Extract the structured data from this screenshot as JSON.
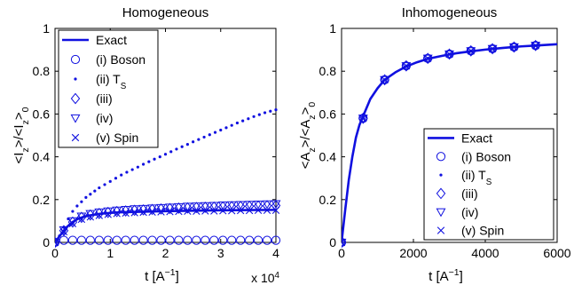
{
  "chart_data": [
    {
      "type": "line",
      "title": "Homogeneous",
      "xlabel": "t [A",
      "xlabel_sup": "−1",
      "xlabel_end": "]",
      "ylabel": "<I",
      "ylabel_sub1": "z",
      "ylabel_mid": ">/<I",
      "ylabel_sub2": "z",
      "ylabel_end": ">",
      "ylabel_sub3": "0",
      "x_multiplier_label": "x 10",
      "x_multiplier_exp": "4",
      "xlim": [
        0,
        40000
      ],
      "ylim": [
        0,
        1
      ],
      "x_ticks": [
        0,
        10000,
        20000,
        30000,
        40000
      ],
      "x_tick_labels": [
        "0",
        "1",
        "2",
        "3",
        "4"
      ],
      "y_ticks": [
        0,
        0.2,
        0.4,
        0.6,
        0.8,
        1
      ],
      "y_tick_labels": [
        "0",
        "0.2",
        "0.4",
        "0.6",
        "0.8",
        "1"
      ],
      "color": "#1010e0",
      "legend_position": "top-left",
      "series": [
        {
          "name": "Exact",
          "marker": "line",
          "x": [
            0,
            1000,
            2000,
            3000,
            4000,
            5000,
            6000,
            8000,
            10000,
            12000,
            15000,
            20000,
            25000,
            30000,
            35000,
            40000
          ],
          "y": [
            0,
            0.035,
            0.068,
            0.092,
            0.108,
            0.118,
            0.125,
            0.133,
            0.138,
            0.141,
            0.143,
            0.146,
            0.148,
            0.15,
            0.151,
            0.152
          ]
        },
        {
          "name": "(i) Boson",
          "marker": "circle",
          "x": [
            0,
            1600,
            3200,
            4800,
            6400,
            8000,
            9600,
            11200,
            12800,
            14400,
            16000,
            17600,
            19200,
            20800,
            22400,
            24000,
            25600,
            27200,
            28800,
            30400,
            32000,
            33600,
            35200,
            36800,
            38400,
            40000
          ],
          "y": [
            0,
            0.01,
            0.01,
            0.01,
            0.01,
            0.01,
            0.01,
            0.01,
            0.01,
            0.01,
            0.01,
            0.01,
            0.01,
            0.01,
            0.01,
            0.01,
            0.01,
            0.01,
            0.01,
            0.01,
            0.01,
            0.01,
            0.01,
            0.01,
            0.01,
            0.01
          ]
        },
        {
          "name": "(ii) T",
          "name_sub": "S",
          "marker": "dot",
          "x": [
            0,
            800,
            1600,
            2400,
            3200,
            4000,
            4800,
            5600,
            6400,
            7200,
            8000,
            9000,
            10000,
            11000,
            12000,
            13000,
            14000,
            15000,
            16000,
            17000,
            18000,
            19000,
            20000,
            21000,
            22000,
            23000,
            24000,
            25000,
            26000,
            27000,
            28000,
            29000,
            30000,
            31000,
            32000,
            33000,
            34000,
            35000,
            36000,
            37000,
            38000,
            39000,
            40000
          ],
          "y": [
            0,
            0.03,
            0.07,
            0.11,
            0.145,
            0.17,
            0.19,
            0.21,
            0.225,
            0.24,
            0.255,
            0.27,
            0.285,
            0.3,
            0.315,
            0.328,
            0.34,
            0.352,
            0.365,
            0.377,
            0.389,
            0.4,
            0.412,
            0.424,
            0.436,
            0.447,
            0.458,
            0.47,
            0.481,
            0.492,
            0.503,
            0.514,
            0.525,
            0.536,
            0.547,
            0.558,
            0.568,
            0.578,
            0.588,
            0.597,
            0.606,
            0.613,
            0.62
          ]
        },
        {
          "name": "(iii)",
          "marker": "diamond",
          "x": [
            0,
            1600,
            3200,
            4800,
            6400,
            8000,
            9600,
            11200,
            12800,
            14400,
            16000,
            17600,
            19200,
            20800,
            22400,
            24000,
            25600,
            27200,
            28800,
            30400,
            32000,
            33600,
            35200,
            36800,
            38400,
            40000
          ],
          "y": [
            0,
            0.055,
            0.095,
            0.117,
            0.128,
            0.135,
            0.14,
            0.144,
            0.147,
            0.15,
            0.152,
            0.154,
            0.156,
            0.158,
            0.16,
            0.161,
            0.163,
            0.164,
            0.165,
            0.166,
            0.167,
            0.168,
            0.169,
            0.17,
            0.171,
            0.172
          ]
        },
        {
          "name": "(iv)",
          "marker": "triangle-down",
          "x": [
            0,
            1600,
            3200,
            4800,
            6400,
            8000,
            9600,
            11200,
            12800,
            14400,
            16000,
            17600,
            19200,
            20800,
            22400,
            24000,
            25600,
            27200,
            28800,
            30400,
            32000,
            33600,
            35200,
            36800,
            38400,
            40000
          ],
          "y": [
            0,
            0.058,
            0.1,
            0.122,
            0.134,
            0.141,
            0.146,
            0.15,
            0.153,
            0.156,
            0.158,
            0.16,
            0.162,
            0.164,
            0.166,
            0.168,
            0.169,
            0.171,
            0.172,
            0.174,
            0.175,
            0.176,
            0.177,
            0.178,
            0.179,
            0.18
          ]
        },
        {
          "name": "(v) Spin",
          "marker": "cross",
          "x": [
            0,
            1600,
            3200,
            4800,
            6400,
            8000,
            9600,
            11200,
            12800,
            14400,
            16000,
            17600,
            19200,
            20800,
            22400,
            24000,
            25600,
            27200,
            28800,
            30400,
            32000,
            33600,
            35200,
            36800,
            38400,
            40000
          ],
          "y": [
            0,
            0.05,
            0.088,
            0.108,
            0.119,
            0.126,
            0.131,
            0.135,
            0.137,
            0.139,
            0.141,
            0.142,
            0.143,
            0.144,
            0.145,
            0.146,
            0.146,
            0.147,
            0.147,
            0.148,
            0.148,
            0.149,
            0.149,
            0.15,
            0.15,
            0.15
          ]
        }
      ]
    },
    {
      "type": "line",
      "title": "Inhomogeneous",
      "xlabel": "t [A",
      "xlabel_sup": "−1",
      "xlabel_end": "]",
      "ylabel": "<A",
      "ylabel_sub1": "z",
      "ylabel_mid": ">/<A",
      "ylabel_sub2": "z",
      "ylabel_end": ">",
      "ylabel_sub3": "0",
      "xlim": [
        0,
        6000
      ],
      "ylim": [
        0,
        1
      ],
      "x_ticks": [
        0,
        2000,
        4000,
        6000
      ],
      "x_tick_labels": [
        "0",
        "2000",
        "4000",
        "6000"
      ],
      "y_ticks": [
        0,
        0.2,
        0.4,
        0.6,
        0.8,
        1
      ],
      "y_tick_labels": [
        "0",
        "0.2",
        "0.4",
        "0.6",
        "0.8",
        "1"
      ],
      "color": "#1010e0",
      "legend_position": "bottom-right",
      "series": [
        {
          "name": "Exact",
          "marker": "line",
          "x": [
            0,
            100,
            200,
            300,
            400,
            500,
            600,
            800,
            1000,
            1200,
            1500,
            1800,
            2100,
            2400,
            2800,
            3200,
            3600,
            4000,
            4500,
            5000,
            5500,
            6000
          ],
          "y": [
            0,
            0.15,
            0.29,
            0.4,
            0.49,
            0.55,
            0.59,
            0.67,
            0.72,
            0.76,
            0.795,
            0.822,
            0.842,
            0.858,
            0.872,
            0.884,
            0.893,
            0.901,
            0.909,
            0.916,
            0.921,
            0.926
          ]
        },
        {
          "name": "(i) Boson",
          "marker": "circle",
          "x": [
            0,
            600,
            1200,
            1800,
            2400,
            3000,
            3600,
            4200,
            4800,
            5400
          ],
          "y": [
            0,
            0.58,
            0.76,
            0.825,
            0.86,
            0.88,
            0.895,
            0.905,
            0.913,
            0.92
          ]
        },
        {
          "name": "(ii) T",
          "name_sub": "S",
          "marker": "dot",
          "x": [
            0,
            600,
            1200,
            1800,
            2400,
            3000,
            3600,
            4200,
            4800,
            5400
          ],
          "y": [
            0,
            0.58,
            0.76,
            0.825,
            0.86,
            0.88,
            0.895,
            0.905,
            0.913,
            0.92
          ]
        },
        {
          "name": "(iii)",
          "marker": "diamond",
          "x": [
            0,
            600,
            1200,
            1800,
            2400,
            3000,
            3600,
            4200,
            4800,
            5400
          ],
          "y": [
            0,
            0.58,
            0.76,
            0.825,
            0.86,
            0.88,
            0.895,
            0.905,
            0.913,
            0.92
          ]
        },
        {
          "name": "(iv)",
          "marker": "triangle-down",
          "x": [
            0,
            600,
            1200,
            1800,
            2400,
            3000,
            3600,
            4200,
            4800,
            5400
          ],
          "y": [
            0,
            0.58,
            0.76,
            0.825,
            0.86,
            0.88,
            0.895,
            0.905,
            0.913,
            0.92
          ]
        },
        {
          "name": "(v) Spin",
          "marker": "cross",
          "x": [
            0,
            600,
            1200,
            1800,
            2400,
            3000,
            3600,
            4200,
            4800,
            5400
          ],
          "y": [
            0,
            0.58,
            0.76,
            0.825,
            0.86,
            0.88,
            0.895,
            0.905,
            0.913,
            0.92
          ]
        }
      ]
    }
  ]
}
